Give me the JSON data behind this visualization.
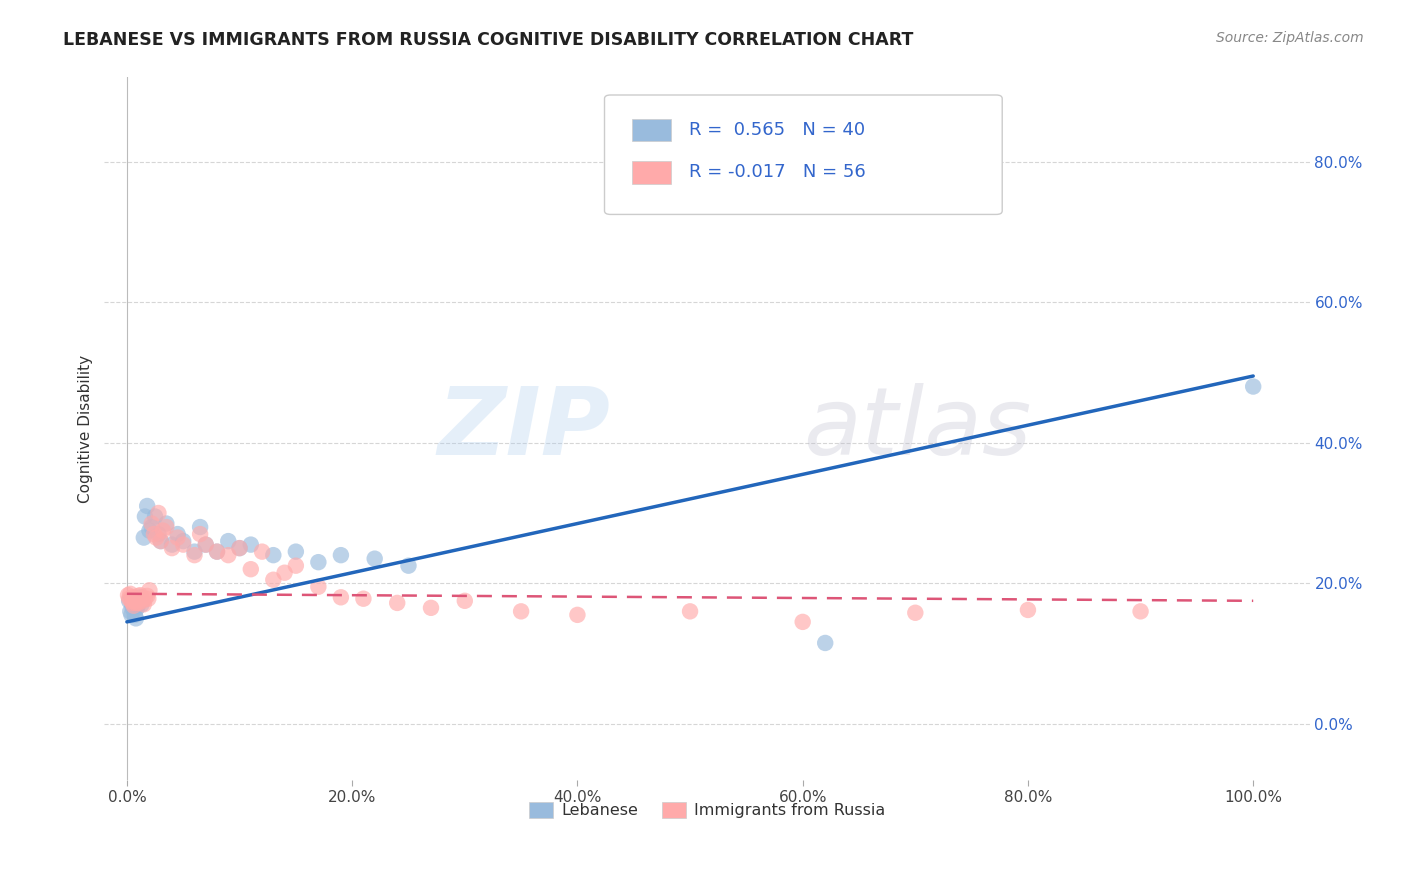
{
  "title": "LEBANESE VS IMMIGRANTS FROM RUSSIA COGNITIVE DISABILITY CORRELATION CHART",
  "source": "Source: ZipAtlas.com",
  "ylabel": "Cognitive Disability",
  "xlabel": "",
  "legend_bottom": [
    "Lebanese",
    "Immigrants from Russia"
  ],
  "r_values": [
    0.565,
    -0.017
  ],
  "n_values": [
    40,
    56
  ],
  "blue_color": "#99BBDD",
  "pink_color": "#FFAAAA",
  "blue_line_color": "#2266BB",
  "pink_line_color": "#DD5577",
  "legend_r_color": "#3366CC",
  "blue_scatter_x": [
    0.002,
    0.003,
    0.004,
    0.005,
    0.005,
    0.006,
    0.007,
    0.008,
    0.009,
    0.01,
    0.011,
    0.012,
    0.013,
    0.015,
    0.016,
    0.018,
    0.02,
    0.022,
    0.025,
    0.028,
    0.03,
    0.035,
    0.04,
    0.045,
    0.05,
    0.06,
    0.065,
    0.07,
    0.08,
    0.09,
    0.1,
    0.11,
    0.13,
    0.15,
    0.17,
    0.19,
    0.22,
    0.25,
    0.62,
    1.0
  ],
  "blue_scatter_y": [
    0.175,
    0.16,
    0.155,
    0.165,
    0.17,
    0.175,
    0.155,
    0.15,
    0.165,
    0.17,
    0.175,
    0.18,
    0.17,
    0.265,
    0.295,
    0.31,
    0.275,
    0.28,
    0.295,
    0.27,
    0.26,
    0.285,
    0.255,
    0.27,
    0.26,
    0.245,
    0.28,
    0.255,
    0.245,
    0.26,
    0.25,
    0.255,
    0.24,
    0.245,
    0.23,
    0.24,
    0.235,
    0.225,
    0.115,
    0.48
  ],
  "pink_scatter_x": [
    0.001,
    0.002,
    0.003,
    0.004,
    0.005,
    0.005,
    0.006,
    0.006,
    0.007,
    0.008,
    0.009,
    0.01,
    0.01,
    0.011,
    0.012,
    0.013,
    0.014,
    0.015,
    0.016,
    0.018,
    0.019,
    0.02,
    0.022,
    0.024,
    0.026,
    0.028,
    0.03,
    0.032,
    0.035,
    0.04,
    0.045,
    0.05,
    0.06,
    0.065,
    0.07,
    0.08,
    0.09,
    0.1,
    0.11,
    0.12,
    0.13,
    0.14,
    0.15,
    0.17,
    0.19,
    0.21,
    0.24,
    0.27,
    0.3,
    0.35,
    0.4,
    0.5,
    0.6,
    0.7,
    0.8,
    0.9
  ],
  "pink_scatter_y": [
    0.183,
    0.178,
    0.185,
    0.175,
    0.18,
    0.172,
    0.178,
    0.168,
    0.175,
    0.172,
    0.178,
    0.172,
    0.182,
    0.178,
    0.183,
    0.178,
    0.175,
    0.17,
    0.178,
    0.182,
    0.178,
    0.19,
    0.285,
    0.27,
    0.265,
    0.3,
    0.26,
    0.275,
    0.28,
    0.25,
    0.265,
    0.255,
    0.24,
    0.27,
    0.255,
    0.245,
    0.24,
    0.25,
    0.22,
    0.245,
    0.205,
    0.215,
    0.225,
    0.195,
    0.18,
    0.178,
    0.172,
    0.165,
    0.175,
    0.16,
    0.155,
    0.16,
    0.145,
    0.158,
    0.162,
    0.16
  ],
  "blue_line_x0": 0.0,
  "blue_line_y0": 0.145,
  "blue_line_x1": 1.0,
  "blue_line_y1": 0.495,
  "pink_line_x0": 0.0,
  "pink_line_y0": 0.185,
  "pink_line_x1": 1.0,
  "pink_line_y1": 0.175,
  "xlim": [
    -0.02,
    1.05
  ],
  "ylim": [
    -0.08,
    0.92
  ],
  "xticks": [
    0.0,
    0.2,
    0.4,
    0.6,
    0.8,
    1.0
  ],
  "xtick_labels": [
    "0.0%",
    "20.0%",
    "40.0%",
    "60.0%",
    "80.0%",
    "100.0%"
  ],
  "ytick_vals_right": [
    0.0,
    0.2,
    0.4,
    0.6,
    0.8
  ],
  "ytick_labels_right": [
    "0.0%",
    "20.0%",
    "40.0%",
    "60.0%",
    "80.0%"
  ],
  "background_color": "#FFFFFF",
  "grid_color": "#CCCCCC"
}
